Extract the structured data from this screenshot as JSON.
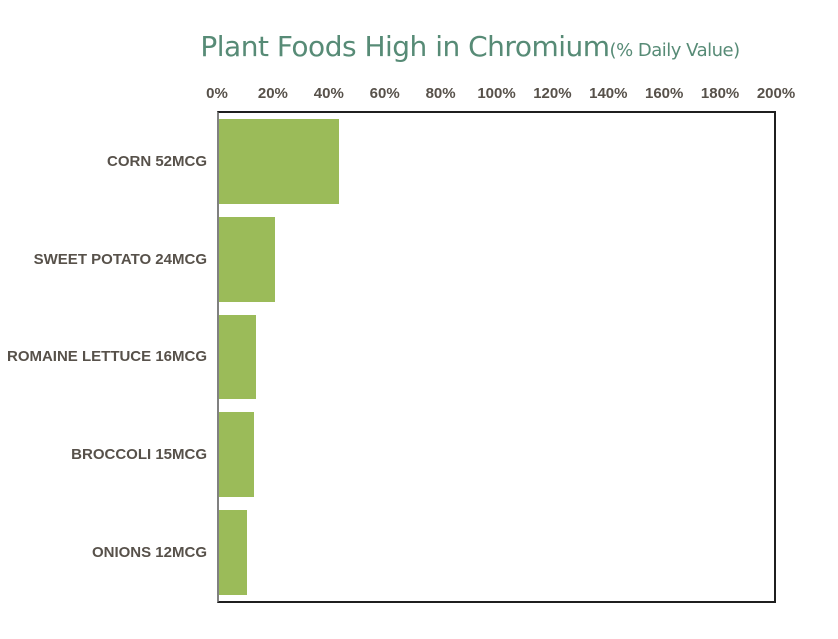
{
  "page": {
    "background": "#ffffff"
  },
  "title": {
    "main": "Plant Foods High in Chromium",
    "suffix": "(% Daily Value)"
  },
  "colors": {
    "bar": "#9bbb59",
    "title_text": "#578b76",
    "label_text": "#57514a",
    "tick_text": "#57514a",
    "plot_border": "#1f1f1f",
    "plot_left_border": "#808080"
  },
  "chart_data": {
    "type": "bar",
    "orientation": "horizontal",
    "title": "Plant Foods High in Chromium (% Daily Value)",
    "categories": [
      "CORN 52MCG",
      "SWEET POTATO 24MCG",
      "ROMAINE LETTUCE 16MCG",
      "BROCCOLI 15MCG",
      "ONIONS 12MCG"
    ],
    "values": [
      43.3,
      20,
      13.3,
      12.5,
      10
    ],
    "value_unit": "% Daily Value",
    "mcg_values": [
      52,
      24,
      16,
      15,
      12
    ],
    "xlim": [
      0,
      200
    ],
    "x_tick_labels": [
      "0%",
      "20%",
      "40%",
      "60%",
      "80%",
      "100%",
      "120%",
      "140%",
      "160%",
      "180%",
      "200%"
    ],
    "x_tick_interval": 20,
    "axis_position": "top",
    "grid": false,
    "legend": false
  }
}
